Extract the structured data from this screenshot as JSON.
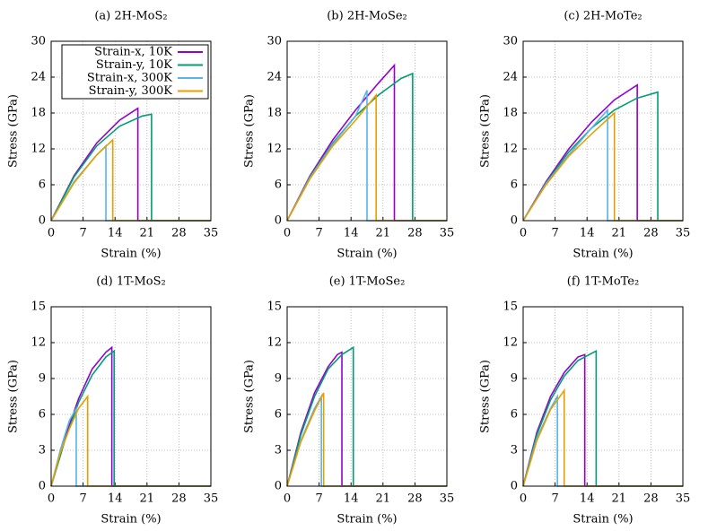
{
  "chart_data": [
    {
      "type": "line",
      "title": "(a) 2H-MoS₂",
      "xlabel": "Strain (%)",
      "ylabel": "Stress (GPa)",
      "xlim": [
        0,
        35
      ],
      "xticks": [
        0,
        7,
        14,
        21,
        28,
        35
      ],
      "ylim": [
        0,
        30
      ],
      "yticks": [
        0,
        6,
        12,
        18,
        24,
        30
      ],
      "grid": true,
      "legend": "upper left",
      "series": [
        {
          "name": "Strain-x, 10K",
          "color": "#9400d3",
          "x": [
            0,
            5,
            10,
            15,
            19,
            19,
            35
          ],
          "values": [
            0,
            7.5,
            13,
            16.8,
            18.8,
            0,
            0
          ]
        },
        {
          "name": "Strain-y, 10K",
          "color": "#009e73",
          "x": [
            0,
            5,
            10,
            15,
            20,
            22,
            22,
            35
          ],
          "values": [
            0,
            7.3,
            12.5,
            15.8,
            17.5,
            17.8,
            0,
            0
          ]
        },
        {
          "name": "Strain-x, 300K",
          "color": "#56b4e9",
          "x": [
            0,
            5,
            10,
            12,
            12,
            35
          ],
          "values": [
            0,
            6.5,
            11,
            12.5,
            0,
            0
          ]
        },
        {
          "name": "Strain-y, 300K",
          "color": "#e69f00",
          "x": [
            0,
            5,
            10,
            13.5,
            13.5,
            35
          ],
          "values": [
            0,
            6.3,
            11,
            13.5,
            0,
            0
          ]
        }
      ]
    },
    {
      "type": "line",
      "title": "(b) 2H-MoSe₂",
      "xlabel": "Strain (%)",
      "ylabel": "Stress (GPa)",
      "xlim": [
        0,
        35
      ],
      "xticks": [
        0,
        7,
        14,
        21,
        28,
        35
      ],
      "ylim": [
        0,
        30
      ],
      "yticks": [
        0,
        6,
        12,
        18,
        24,
        30
      ],
      "grid": true,
      "series": [
        {
          "color": "#9400d3",
          "x": [
            0,
            5,
            10,
            15,
            20,
            23.5,
            23.5,
            35
          ],
          "values": [
            0,
            7.5,
            13.5,
            18.5,
            23,
            26,
            0,
            0
          ]
        },
        {
          "color": "#009e73",
          "x": [
            0,
            5,
            10,
            15,
            20,
            25,
            27.5,
            27.5,
            35
          ],
          "values": [
            0,
            7.3,
            13,
            17.5,
            21,
            23.8,
            24.6,
            0,
            0
          ]
        },
        {
          "color": "#56b4e9",
          "x": [
            0,
            5,
            10,
            15,
            17.5,
            17.5,
            35
          ],
          "values": [
            0,
            7.2,
            12.8,
            17.5,
            21.8,
            0,
            0
          ]
        },
        {
          "color": "#e69f00",
          "x": [
            0,
            5,
            10,
            15,
            19.5,
            19.5,
            35
          ],
          "values": [
            0,
            7,
            12.5,
            16.8,
            21,
            0,
            0
          ]
        }
      ]
    },
    {
      "type": "line",
      "title": "(c) 2H-MoTe₂",
      "xlabel": "Strain (%)",
      "ylabel": "Stress (GPa)",
      "xlim": [
        0,
        35
      ],
      "xticks": [
        0,
        7,
        14,
        21,
        28,
        35
      ],
      "ylim": [
        0,
        30
      ],
      "yticks": [
        0,
        6,
        12,
        18,
        24,
        30
      ],
      "grid": true,
      "series": [
        {
          "color": "#9400d3",
          "x": [
            0,
            5,
            10,
            15,
            20,
            25,
            25,
            35
          ],
          "values": [
            0,
            6.5,
            12,
            16.5,
            20.2,
            22.7,
            0,
            0
          ]
        },
        {
          "color": "#009e73",
          "x": [
            0,
            5,
            10,
            15,
            20,
            25,
            29.5,
            29.5,
            35
          ],
          "values": [
            0,
            6.3,
            11.5,
            15.5,
            18.5,
            20.5,
            21.5,
            0,
            0
          ]
        },
        {
          "color": "#56b4e9",
          "x": [
            0,
            5,
            10,
            15,
            18.5,
            18.5,
            35
          ],
          "values": [
            0,
            6.2,
            11,
            15.5,
            18.5,
            0,
            0
          ]
        },
        {
          "color": "#e69f00",
          "x": [
            0,
            5,
            10,
            15,
            20,
            20,
            35
          ],
          "values": [
            0,
            6,
            10.8,
            14.5,
            18,
            0,
            0
          ]
        }
      ]
    },
    {
      "type": "line",
      "title": "(d) 1T-MoS₂",
      "xlabel": "Strain (%)",
      "ylabel": "Stress (GPa)",
      "xlim": [
        0,
        35
      ],
      "xticks": [
        0,
        7,
        14,
        21,
        28,
        35
      ],
      "ylim": [
        0,
        15
      ],
      "yticks": [
        0,
        3,
        6,
        9,
        12,
        15
      ],
      "grid": true,
      "series": [
        {
          "color": "#9400d3",
          "x": [
            0,
            3,
            6,
            9,
            12,
            13.3,
            13.3,
            35
          ],
          "values": [
            0,
            4,
            7.3,
            9.8,
            11.2,
            11.6,
            0,
            0
          ]
        },
        {
          "color": "#009e73",
          "x": [
            0,
            3,
            6,
            9,
            12,
            13.8,
            13.8,
            35
          ],
          "values": [
            0,
            3.8,
            7,
            9.3,
            10.8,
            11.3,
            0,
            0
          ]
        },
        {
          "color": "#56b4e9",
          "x": [
            0,
            2,
            4,
            5.5,
            5.5,
            35
          ],
          "values": [
            0,
            3,
            5.5,
            6.5,
            0,
            0
          ]
        },
        {
          "color": "#e69f00",
          "x": [
            0,
            2,
            4,
            6,
            8,
            8,
            35
          ],
          "values": [
            0,
            2.8,
            4.8,
            6.5,
            7.5,
            0,
            0
          ]
        }
      ]
    },
    {
      "type": "line",
      "title": "(e) 1T-MoSe₂",
      "xlabel": "Strain (%)",
      "ylabel": "Stress (GPa)",
      "xlim": [
        0,
        35
      ],
      "xticks": [
        0,
        7,
        14,
        21,
        28,
        35
      ],
      "ylim": [
        0,
        15
      ],
      "yticks": [
        0,
        3,
        6,
        9,
        12,
        15
      ],
      "grid": true,
      "series": [
        {
          "color": "#9400d3",
          "x": [
            0,
            3,
            6,
            9,
            11,
            12,
            12,
            35
          ],
          "values": [
            0,
            4.5,
            7.8,
            10,
            11,
            11.2,
            0,
            0
          ]
        },
        {
          "color": "#009e73",
          "x": [
            0,
            3,
            6,
            9,
            12,
            14.5,
            14.5,
            35
          ],
          "values": [
            0,
            4.3,
            7.5,
            9.8,
            11,
            11.6,
            0,
            0
          ]
        },
        {
          "color": "#56b4e9",
          "x": [
            0,
            3,
            6,
            7.5,
            7.5,
            35
          ],
          "values": [
            0,
            3.8,
            6.5,
            7.5,
            0,
            0
          ]
        },
        {
          "color": "#e69f00",
          "x": [
            0,
            3,
            6,
            8,
            8,
            35
          ],
          "values": [
            0,
            3.7,
            6.3,
            7.8,
            0,
            0
          ]
        }
      ]
    },
    {
      "type": "line",
      "title": "(f) 1T-MoTe₂",
      "xlabel": "Strain (%)",
      "ylabel": "Stress (GPa)",
      "xlim": [
        0,
        35
      ],
      "xticks": [
        0,
        7,
        14,
        21,
        28,
        35
      ],
      "ylim": [
        0,
        15
      ],
      "yticks": [
        0,
        3,
        6,
        9,
        12,
        15
      ],
      "grid": true,
      "series": [
        {
          "color": "#9400d3",
          "x": [
            0,
            3,
            6,
            9,
            12,
            13.5,
            13.5,
            35
          ],
          "values": [
            0,
            4.5,
            7.5,
            9.5,
            10.8,
            11,
            0,
            0
          ]
        },
        {
          "color": "#009e73",
          "x": [
            0,
            3,
            6,
            9,
            12,
            16,
            16,
            35
          ],
          "values": [
            0,
            4.3,
            7.2,
            9.2,
            10.5,
            11.3,
            0,
            0
          ]
        },
        {
          "color": "#56b4e9",
          "x": [
            0,
            3,
            6,
            7.5,
            7.5,
            35
          ],
          "values": [
            0,
            4,
            6.5,
            7.5,
            0,
            0
          ]
        },
        {
          "color": "#e69f00",
          "x": [
            0,
            3,
            6,
            9,
            9,
            35
          ],
          "values": [
            0,
            3.8,
            6.4,
            8,
            0,
            0
          ]
        }
      ]
    }
  ]
}
